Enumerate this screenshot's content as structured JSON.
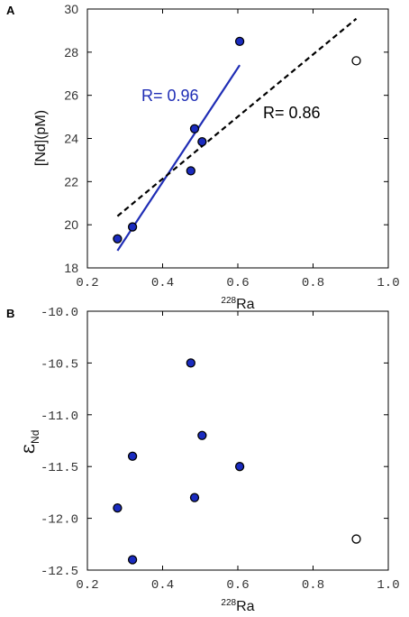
{
  "colors": {
    "filled_point": "#1a2bbf",
    "fit_line": "#1f2db5",
    "dashed_line": "#000000"
  },
  "chart_data": [
    {
      "panel": "A",
      "type": "scatter",
      "xlabel_sup": "228",
      "xlabel_main": "Ra",
      "ylabel": "[Nd](pM)",
      "xlim": [
        0.2,
        1.0
      ],
      "ylim": [
        18,
        30
      ],
      "x_ticks": [
        "0.2",
        "0.4",
        "0.6",
        "0.8",
        "1.0"
      ],
      "y_ticks": [
        "18",
        "20",
        "22",
        "24",
        "26",
        "28",
        "30"
      ],
      "points": [
        {
          "x": 0.28,
          "y": 19.35,
          "filled": true
        },
        {
          "x": 0.32,
          "y": 19.9,
          "filled": true
        },
        {
          "x": 0.475,
          "y": 22.5,
          "filled": true
        },
        {
          "x": 0.485,
          "y": 24.45,
          "filled": true
        },
        {
          "x": 0.505,
          "y": 23.85,
          "filled": true
        },
        {
          "x": 0.605,
          "y": 28.5,
          "filled": true
        },
        {
          "x": 0.915,
          "y": 27.6,
          "filled": false
        }
      ],
      "fits": [
        {
          "label": "R= 0.96",
          "style": "solid",
          "x": [
            0.28,
            0.605
          ],
          "y": [
            18.8,
            27.4
          ]
        },
        {
          "label": "R= 0.86",
          "style": "dashed",
          "x": [
            0.28,
            0.915
          ],
          "y": [
            20.4,
            29.55
          ]
        }
      ]
    },
    {
      "panel": "B",
      "type": "scatter",
      "xlabel_sup": "228",
      "xlabel_main": "Ra",
      "ylabel_main": "ε",
      "ylabel_sub": "Nd",
      "xlim": [
        0.2,
        1.0
      ],
      "ylim": [
        -12.5,
        -10.0
      ],
      "x_ticks": [
        "0.2",
        "0.4",
        "0.6",
        "0.8",
        "1.0"
      ],
      "y_ticks": [
        "-10.0",
        "-10.5",
        "-11.0",
        "-11.5",
        "-12.0",
        "-12.5"
      ],
      "points": [
        {
          "x": 0.28,
          "y": -11.9,
          "filled": true
        },
        {
          "x": 0.32,
          "y": -11.4,
          "filled": true
        },
        {
          "x": 0.32,
          "y": -12.4,
          "filled": true
        },
        {
          "x": 0.475,
          "y": -10.5,
          "filled": true
        },
        {
          "x": 0.485,
          "y": -11.8,
          "filled": true
        },
        {
          "x": 0.505,
          "y": -11.2,
          "filled": true
        },
        {
          "x": 0.605,
          "y": -11.5,
          "filled": true
        },
        {
          "x": 0.915,
          "y": -12.2,
          "filled": false
        }
      ]
    }
  ]
}
